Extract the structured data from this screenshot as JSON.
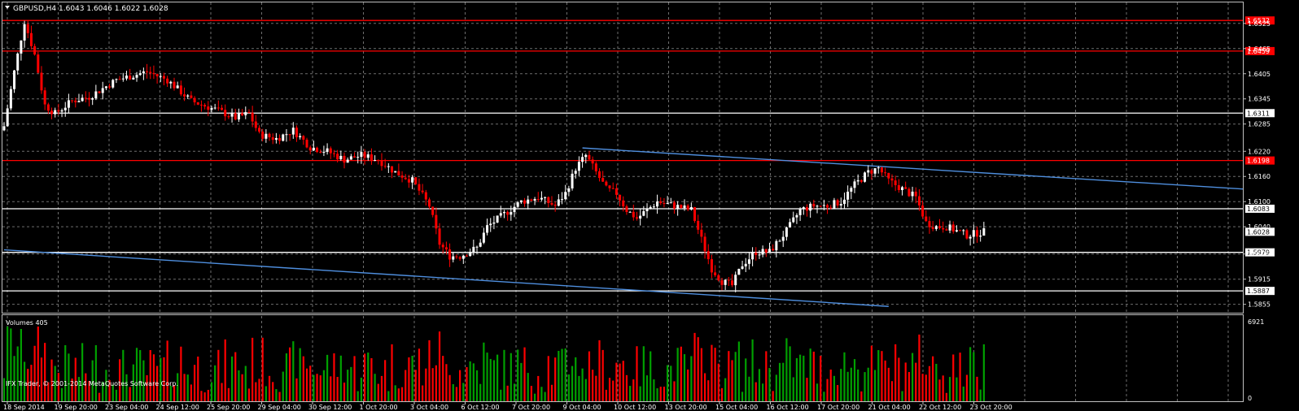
{
  "chart_data": {
    "type": "candlestick",
    "symbol_header": "GBPUSD,H4  1.6043 1.6046 1.6022 1.6028",
    "price_axis_ticks": [
      "1.6525",
      "1.6465",
      "1.6405",
      "1.6345",
      "1.6285",
      "1.6220",
      "1.6160",
      "1.6100",
      "1.6040",
      "1.5975",
      "1.5915",
      "1.5855"
    ],
    "ylim": [
      1.5835,
      1.6575
    ],
    "hlines": [
      {
        "price": 1.6532,
        "label": "1.6532",
        "color": "#ff0000"
      },
      {
        "price": 1.6459,
        "label": "1.6459",
        "color": "#ff0000"
      },
      {
        "price": 1.6311,
        "label": "1.6311",
        "color": "#ffffff"
      },
      {
        "price": 1.6198,
        "label": "1.6198",
        "color": "#ff0000"
      },
      {
        "price": 1.6083,
        "label": "1.6083",
        "color": "#ffffff"
      },
      {
        "price": 1.5979,
        "label": "1.5979",
        "color": "#ffffff"
      },
      {
        "price": 1.5887,
        "label": "1.5887",
        "color": "#ffffff"
      }
    ],
    "current_price": {
      "price": 1.6028,
      "label": "1.6028"
    },
    "trendlines": [
      {
        "from_bar": 0,
        "from_price": 1.5985,
        "to_bar": 260,
        "to_price": 1.585,
        "color": "#4f8fdf"
      },
      {
        "from_bar": 170,
        "from_price": 1.6228,
        "to_bar": 365,
        "to_price": 1.613,
        "color": "#4f8fdf"
      }
    ],
    "anchors": [
      [
        0,
        1.628
      ],
      [
        3,
        1.641
      ],
      [
        6,
        1.653
      ],
      [
        9,
        1.645
      ],
      [
        12,
        1.633
      ],
      [
        15,
        1.631
      ],
      [
        20,
        1.634
      ],
      [
        25,
        1.635
      ],
      [
        33,
        1.639
      ],
      [
        42,
        1.641
      ],
      [
        48,
        1.639
      ],
      [
        55,
        1.634
      ],
      [
        62,
        1.632
      ],
      [
        68,
        1.63
      ],
      [
        72,
        1.631
      ],
      [
        75,
        1.626
      ],
      [
        80,
        1.625
      ],
      [
        85,
        1.627
      ],
      [
        90,
        1.623
      ],
      [
        95,
        1.622
      ],
      [
        100,
        1.62
      ],
      [
        105,
        1.621
      ],
      [
        110,
        1.62
      ],
      [
        115,
        1.617
      ],
      [
        120,
        1.615
      ],
      [
        125,
        1.609
      ],
      [
        128,
        1.6
      ],
      [
        131,
        1.597
      ],
      [
        134,
        1.597
      ],
      [
        139,
        1.599
      ],
      [
        142,
        1.604
      ],
      [
        147,
        1.607
      ],
      [
        152,
        1.61
      ],
      [
        157,
        1.611
      ],
      [
        162,
        1.609
      ],
      [
        165,
        1.612
      ],
      [
        168,
        1.618
      ],
      [
        171,
        1.621
      ],
      [
        174,
        1.617
      ],
      [
        177,
        1.613
      ],
      [
        180,
        1.612
      ],
      [
        183,
        1.608
      ],
      [
        186,
        1.606
      ],
      [
        189,
        1.608
      ],
      [
        192,
        1.61
      ],
      [
        197,
        1.609
      ],
      [
        202,
        1.608
      ],
      [
        205,
        1.601
      ],
      [
        208,
        1.594
      ],
      [
        211,
        1.591
      ],
      [
        214,
        1.59
      ],
      [
        217,
        1.595
      ],
      [
        221,
        1.598
      ],
      [
        225,
        1.598
      ],
      [
        230,
        1.603
      ],
      [
        234,
        1.608
      ],
      [
        238,
        1.609
      ],
      [
        242,
        1.609
      ],
      [
        246,
        1.61
      ],
      [
        250,
        1.614
      ],
      [
        254,
        1.617
      ],
      [
        257,
        1.618
      ],
      [
        260,
        1.615
      ],
      [
        264,
        1.613
      ],
      [
        268,
        1.611
      ],
      [
        271,
        1.605
      ],
      [
        274,
        1.604
      ],
      [
        277,
        1.604
      ],
      [
        280,
        1.603
      ],
      [
        283,
        1.602
      ],
      [
        286,
        1.6025
      ],
      [
        288,
        1.6028
      ]
    ],
    "volumes": {
      "label": "Volumes 405",
      "max_label": "6921",
      "zero_label": "0"
    },
    "time_labels": [
      "18 Sep 2014",
      "19 Sep 20:00",
      "23 Sep 04:00",
      "24 Sep 12:00",
      "25 Sep 20:00",
      "29 Sep 04:00",
      "30 Sep 12:00",
      "1 Oct 20:00",
      "3 Oct 04:00",
      "6 Oct 12:00",
      "7 Oct 20:00",
      "9 Oct 04:00",
      "10 Oct 12:00",
      "13 Oct 20:00",
      "15 Oct 04:00",
      "16 Oct 12:00",
      "17 Oct 20:00",
      "21 Oct 04:00",
      "22 Oct 12:00",
      "23 Oct 20:00"
    ],
    "copyright": "IFX Trader, © 2001-2014 MetaQuotes Software Corp.",
    "colors": {
      "bull": "#ffffff",
      "bear": "#ff0000",
      "vol_up": "#00a000",
      "vol_down": "#ff0000",
      "grid": "#6e6e6e",
      "frame": "#c0c0c0"
    }
  }
}
